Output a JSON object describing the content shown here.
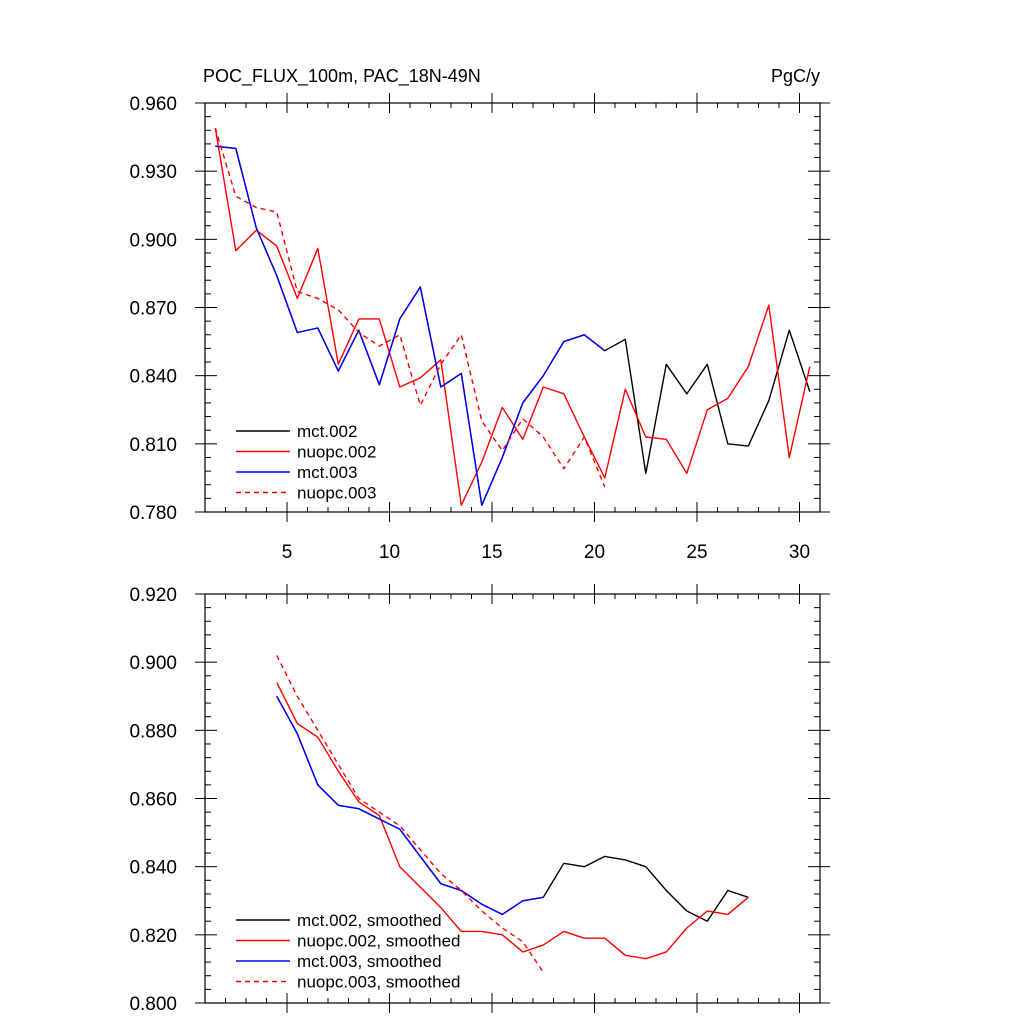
{
  "chart_data": [
    {
      "type": "line",
      "title": "POC_FLUX_100m, PAC_18N-49N",
      "units": "PgC/y",
      "xlim": [
        1,
        31
      ],
      "ylim": [
        0.78,
        0.96
      ],
      "x_major_ticks": [
        5,
        10,
        15,
        20,
        25,
        30
      ],
      "x_tick_labels": [
        "5",
        "10",
        "15",
        "20",
        "25",
        "30"
      ],
      "y_major_ticks": [
        0.78,
        0.81,
        0.84,
        0.87,
        0.9,
        0.93,
        0.96
      ],
      "y_tick_labels": [
        "0.780",
        "0.810",
        "0.840",
        "0.870",
        "0.900",
        "0.930",
        "0.960"
      ],
      "series": [
        {
          "name": "mct.002",
          "color": "#000000",
          "dash": "solid",
          "x": [
            1.5,
            2.5,
            3.5,
            4.5,
            5.5,
            6.5,
            7.5,
            8.5,
            9.5,
            10.5,
            11.5,
            12.5,
            13.5,
            14.5,
            15.5,
            16.5,
            17.5,
            18.5,
            19.5,
            20.5,
            21.5,
            22.5,
            23.5,
            24.5,
            25.5,
            26.5,
            27.5,
            28.5,
            29.5,
            30.5
          ],
          "y": [
            0.941,
            0.94,
            0.905,
            0.884,
            0.859,
            0.861,
            0.842,
            0.86,
            0.836,
            0.865,
            0.879,
            0.835,
            0.841,
            0.783,
            0.804,
            0.828,
            0.84,
            0.855,
            0.858,
            0.851,
            0.856,
            0.797,
            0.845,
            0.832,
            0.845,
            0.81,
            0.809,
            0.829,
            0.86,
            0.833
          ]
        },
        {
          "name": "nuopc.002",
          "color": "#ff0000",
          "dash": "solid",
          "x": [
            1.5,
            2.5,
            3.5,
            4.5,
            5.5,
            6.5,
            7.5,
            8.5,
            9.5,
            10.5,
            11.5,
            12.5,
            13.5,
            14.5,
            15.5,
            16.5,
            17.5,
            18.5,
            19.5,
            20.5,
            21.5,
            22.5,
            23.5,
            24.5,
            25.5,
            26.5,
            27.5,
            28.5,
            29.5,
            30.5
          ],
          "y": [
            0.949,
            0.895,
            0.904,
            0.897,
            0.874,
            0.896,
            0.845,
            0.865,
            0.865,
            0.835,
            0.839,
            0.847,
            0.783,
            0.802,
            0.826,
            0.812,
            0.835,
            0.832,
            0.813,
            0.795,
            0.834,
            0.813,
            0.812,
            0.797,
            0.825,
            0.83,
            0.844,
            0.871,
            0.804,
            0.844
          ]
        },
        {
          "name": "mct.003",
          "color": "#0000ff",
          "dash": "solid",
          "x": [
            1.5,
            2.5,
            3.5,
            4.5,
            5.5,
            6.5,
            7.5,
            8.5,
            9.5,
            10.5,
            11.5,
            12.5,
            13.5,
            14.5,
            15.5,
            16.5,
            17.5,
            18.5,
            19.5,
            20.5
          ],
          "y": [
            0.941,
            0.94,
            0.905,
            0.884,
            0.859,
            0.861,
            0.842,
            0.86,
            0.836,
            0.865,
            0.879,
            0.835,
            0.841,
            0.783,
            0.804,
            0.828,
            0.84,
            0.855,
            0.858,
            0.851
          ]
        },
        {
          "name": "nuopc.003",
          "color": "#ff0000",
          "dash": "dashed",
          "x": [
            1.5,
            2.5,
            3.5,
            4.5,
            5.5,
            6.5,
            7.5,
            8.5,
            9.5,
            10.5,
            11.5,
            12.5,
            13.5,
            14.5,
            15.5,
            16.5,
            17.5,
            18.5,
            19.5,
            20.5
          ],
          "y": [
            0.949,
            0.919,
            0.914,
            0.912,
            0.877,
            0.874,
            0.869,
            0.859,
            0.853,
            0.858,
            0.827,
            0.845,
            0.858,
            0.82,
            0.807,
            0.821,
            0.813,
            0.799,
            0.813,
            0.791
          ]
        }
      ]
    },
    {
      "type": "line",
      "title": "",
      "xlim": [
        1,
        31
      ],
      "ylim": [
        0.8,
        0.92
      ],
      "x_major_ticks": [
        5,
        10,
        15,
        20,
        25,
        30
      ],
      "x_tick_labels": [],
      "y_major_ticks": [
        0.8,
        0.82,
        0.84,
        0.86,
        0.88,
        0.9,
        0.92
      ],
      "y_tick_labels": [
        "0.800",
        "0.820",
        "0.840",
        "0.860",
        "0.880",
        "0.900",
        "0.920"
      ],
      "series": [
        {
          "name": "mct.002, smoothed",
          "color": "#000000",
          "dash": "solid",
          "x": [
            4.5,
            5.5,
            6.5,
            7.5,
            8.5,
            9.5,
            10.5,
            11.5,
            12.5,
            13.5,
            14.5,
            15.5,
            16.5,
            17.5,
            18.5,
            19.5,
            20.5,
            21.5,
            22.5,
            23.5,
            24.5,
            25.5,
            26.5,
            27.5
          ],
          "y": [
            0.89,
            0.879,
            0.864,
            0.858,
            0.857,
            0.854,
            0.851,
            0.843,
            0.835,
            0.833,
            0.829,
            0.826,
            0.83,
            0.831,
            0.841,
            0.84,
            0.843,
            0.842,
            0.84,
            0.833,
            0.827,
            0.824,
            0.833,
            0.831
          ]
        },
        {
          "name": "nuopc.002, smoothed",
          "color": "#ff0000",
          "dash": "solid",
          "x": [
            4.5,
            5.5,
            6.5,
            7.5,
            8.5,
            9.5,
            10.5,
            11.5,
            12.5,
            13.5,
            14.5,
            15.5,
            16.5,
            17.5,
            18.5,
            19.5,
            20.5,
            21.5,
            22.5,
            23.5,
            24.5,
            25.5,
            26.5,
            27.5
          ],
          "y": [
            0.894,
            0.882,
            0.878,
            0.868,
            0.859,
            0.855,
            0.84,
            0.834,
            0.828,
            0.821,
            0.821,
            0.82,
            0.815,
            0.817,
            0.821,
            0.819,
            0.819,
            0.814,
            0.813,
            0.815,
            0.822,
            0.827,
            0.826,
            0.831
          ]
        },
        {
          "name": "mct.003, smoothed",
          "color": "#0000ff",
          "dash": "solid",
          "x": [
            4.5,
            5.5,
            6.5,
            7.5,
            8.5,
            9.5,
            10.5,
            11.5,
            12.5,
            13.5,
            14.5,
            15.5,
            16.5,
            17.5
          ],
          "y": [
            0.89,
            0.879,
            0.864,
            0.858,
            0.857,
            0.854,
            0.851,
            0.843,
            0.835,
            0.833,
            0.829,
            0.826,
            0.83,
            0.831
          ]
        },
        {
          "name": "nuopc.003, smoothed",
          "color": "#ff0000",
          "dash": "dashed",
          "x": [
            4.5,
            5.5,
            6.5,
            7.5,
            8.5,
            9.5,
            10.5,
            11.5,
            12.5,
            13.5,
            14.5,
            15.5,
            16.5,
            17.5
          ],
          "y": [
            0.902,
            0.89,
            0.88,
            0.87,
            0.86,
            0.856,
            0.852,
            0.845,
            0.838,
            0.833,
            0.827,
            0.822,
            0.818,
            0.809
          ]
        }
      ]
    }
  ]
}
